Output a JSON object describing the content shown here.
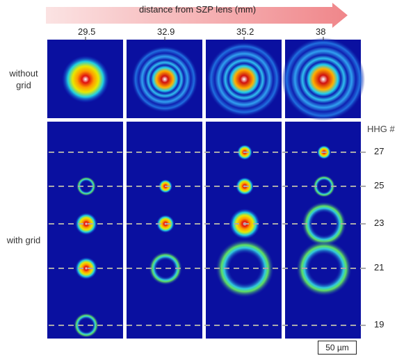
{
  "header": {
    "arrow_label": "distance from SZP lens (mm)",
    "distances": [
      "29.5",
      "32.9",
      "35.2",
      "38"
    ]
  },
  "row_labels": [
    "without grid",
    "with grid"
  ],
  "hhg": {
    "title": "HHG #",
    "orders": [
      "27",
      "25",
      "23",
      "21",
      "19"
    ]
  },
  "scale_bar": "50 µm"
}
